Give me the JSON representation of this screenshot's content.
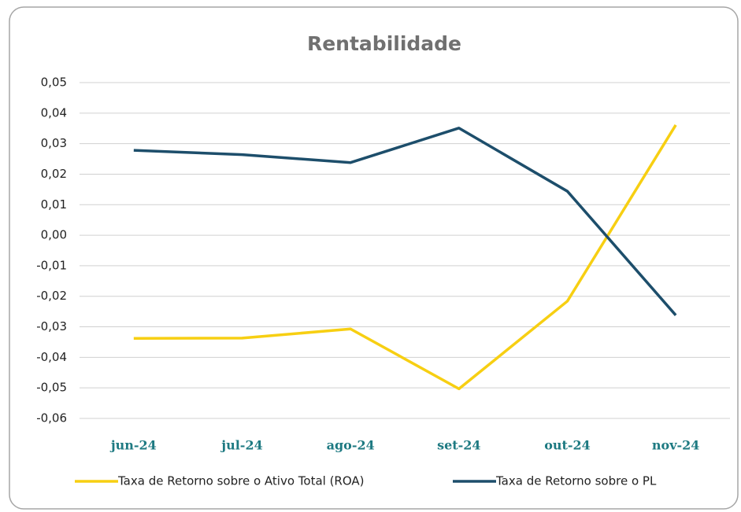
{
  "chart_data": {
    "type": "line",
    "title": "Rentabilidade",
    "categories": [
      "jun-24",
      "jul-24",
      "ago-24",
      "set-24",
      "out-24",
      "nov-24"
    ],
    "series": [
      {
        "name": "Taxa de Retorno sobre o Ativo Total (ROA)",
        "color": "#f7cf12",
        "values": [
          -0.0338,
          -0.0337,
          -0.0307,
          -0.0503,
          -0.0216,
          0.0361
        ]
      },
      {
        "name": "Taxa de Retorno sobre o PL",
        "color": "#1d4e6b",
        "values": [
          0.0278,
          0.0264,
          0.0238,
          0.0351,
          0.0144,
          -0.0262
        ]
      }
    ],
    "ylim": [
      -0.06,
      0.05
    ],
    "yticks": [
      {
        "value": -0.06,
        "label": "-0,06"
      },
      {
        "value": -0.05,
        "label": "-0,05"
      },
      {
        "value": -0.04,
        "label": "-0,04"
      },
      {
        "value": -0.03,
        "label": "-0,03"
      },
      {
        "value": -0.02,
        "label": "-0,02"
      },
      {
        "value": -0.01,
        "label": "-0,01"
      },
      {
        "value": 0,
        "label": "0,00"
      },
      {
        "value": 0.01,
        "label": "0,01"
      },
      {
        "value": 0.02,
        "label": "0,02"
      },
      {
        "value": 0.03,
        "label": "0,03"
      },
      {
        "value": 0.04,
        "label": "0,04"
      },
      {
        "value": 0.05,
        "label": "0,05"
      }
    ],
    "grid": true,
    "legend": "bottom"
  }
}
